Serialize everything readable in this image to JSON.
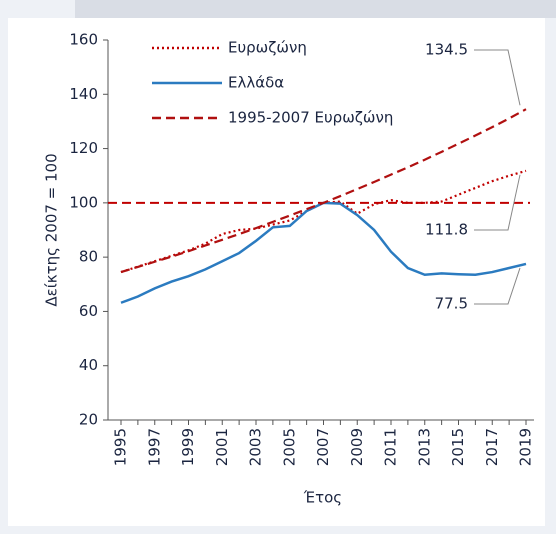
{
  "chart_data": {
    "type": "line",
    "ylabel": "Δείκτης 2007 = 100",
    "xlabel": "Έτος",
    "x": [
      1995,
      1996,
      1997,
      1998,
      1999,
      2000,
      2001,
      2002,
      2003,
      2004,
      2005,
      2006,
      2007,
      2008,
      2009,
      2010,
      2011,
      2012,
      2013,
      2014,
      2015,
      2016,
      2017,
      2018,
      2019
    ],
    "xlim": [
      1995,
      2019
    ],
    "xticks": [
      1995,
      1997,
      1999,
      2001,
      2003,
      2005,
      2007,
      2009,
      2011,
      2013,
      2015,
      2017,
      2019
    ],
    "ylim": [
      20,
      160
    ],
    "yticks": [
      20,
      40,
      60,
      80,
      100,
      120,
      140,
      160
    ],
    "hline": {
      "value": 100,
      "color": "#c00000"
    },
    "series": [
      {
        "name": "Ευρωζώνη",
        "color": "#c00000",
        "style": "dotted",
        "values": [
          74.5,
          76.5,
          78.5,
          80.5,
          82.5,
          85,
          88.5,
          90,
          90.5,
          92,
          93.5,
          97,
          100,
          100.5,
          96,
          99.5,
          101,
          100,
          100,
          100.5,
          103,
          105.5,
          108,
          110,
          111.8
        ]
      },
      {
        "name": "Ελλάδα",
        "color": "#2b7bc0",
        "style": "solid",
        "values": [
          63.2,
          65.5,
          68.5,
          71,
          73,
          75.5,
          78.5,
          81.5,
          86,
          91,
          91.5,
          97,
          100,
          99.7,
          95.5,
          90,
          82,
          76,
          73.5,
          74,
          73.7,
          73.5,
          74.5,
          76,
          77.5
        ]
      },
      {
        "name": "1995-2007 Ευρωζώνη",
        "color": "#b01010",
        "style": "dashed",
        "values": [
          74.5,
          76.4,
          78.3,
          80.2,
          82.2,
          84.3,
          86.4,
          88.5,
          90.7,
          93,
          95.3,
          97.7,
          100,
          102.5,
          105.1,
          107.7,
          110.4,
          113.1,
          115.9,
          118.8,
          121.8,
          124.8,
          127.9,
          131.1,
          134.5
        ]
      }
    ],
    "annotations": [
      {
        "label": "134.5",
        "value": 134.5,
        "series": 2
      },
      {
        "label": "111.8",
        "value": 111.8,
        "series": 0
      },
      {
        "label": "77.5",
        "value": 77.5,
        "series": 1
      }
    ]
  }
}
